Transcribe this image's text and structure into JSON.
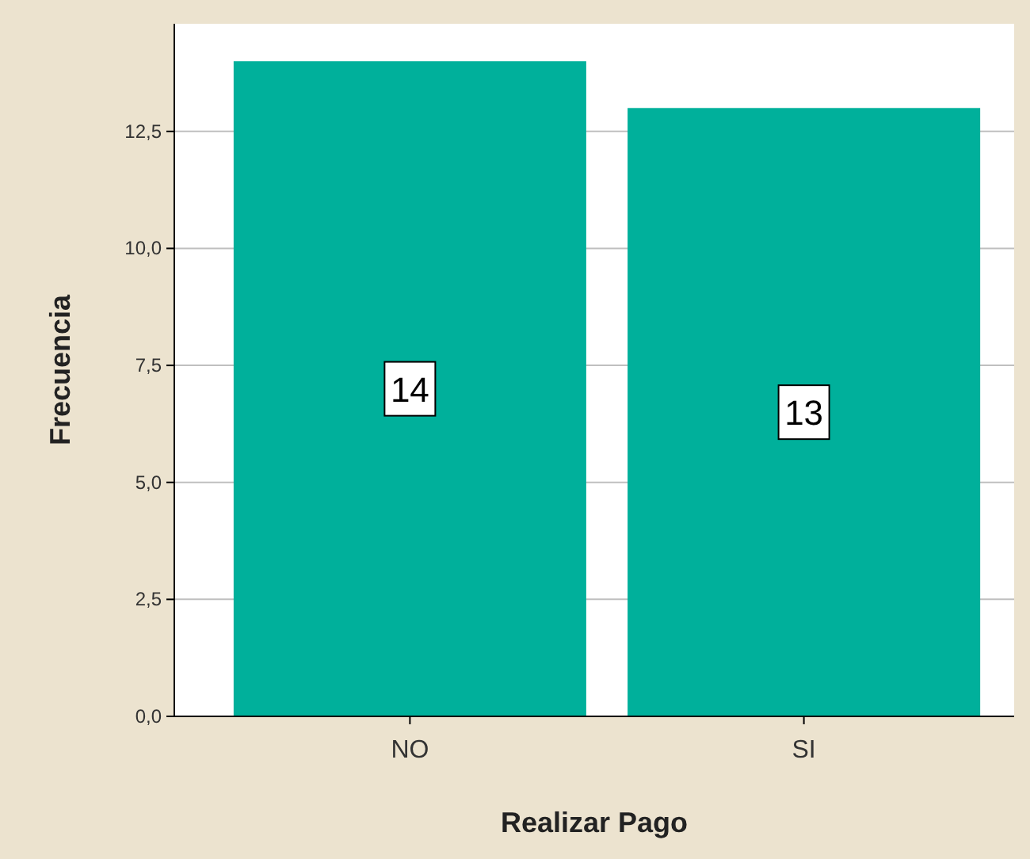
{
  "chart_data": {
    "type": "bar",
    "xlabel": "Realizar Pago",
    "ylabel": "Frecuencia",
    "categories": [
      "NO",
      "SI"
    ],
    "values": [
      14,
      13
    ],
    "color": "#00b09b",
    "ylim": [
      0,
      14.8
    ],
    "yticks": [
      {
        "value": 0,
        "label": "0,0"
      },
      {
        "value": 2.5,
        "label": "2,5"
      },
      {
        "value": 5,
        "label": "5,0"
      },
      {
        "value": 7.5,
        "label": "7,5"
      },
      {
        "value": 10,
        "label": "10,0"
      },
      {
        "value": 12.5,
        "label": "12,5"
      }
    ],
    "grid": "y",
    "data_labels": true
  }
}
